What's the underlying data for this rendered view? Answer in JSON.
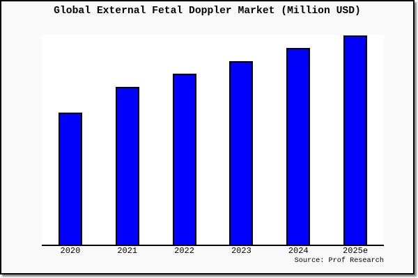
{
  "chart_data": {
    "type": "bar",
    "title": "Global External Fetal Doppler Market (Million USD)",
    "categories": [
      "2020",
      "2021",
      "2022",
      "2023",
      "2024",
      "2025e"
    ],
    "values": [
      190,
      227,
      246,
      264,
      283,
      301
    ],
    "ylim": [
      0,
      302
    ],
    "units_note": "relative bar heights; chart displays no y-axis ticks or value labels",
    "xlabel": "",
    "ylabel": "",
    "grid": false,
    "legend": false,
    "source_label": "Source: Prof Research"
  },
  "colors": {
    "bar_fill": "#0000fb",
    "bar_border": "#000000",
    "frame_background": "#f9f9f9",
    "plot_background": "#ffffff",
    "frame_border": "#000000",
    "title_color": "#000000"
  }
}
